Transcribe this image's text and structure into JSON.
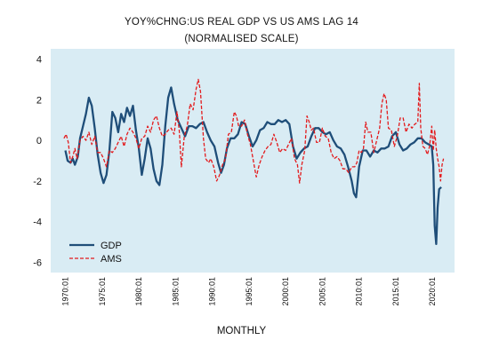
{
  "chart_data": {
    "type": "line",
    "title": "YOY%CHNG:US REAL GDP VS US AMS LAG 14",
    "subtitle": "(NORMALISED SCALE)",
    "xlabel": "MONTHLY",
    "ylabel": "",
    "ylim": [
      -6.5,
      4.5
    ],
    "y_ticks": [
      -6,
      -4,
      -2,
      0,
      2,
      4
    ],
    "x_range": [
      1968.0,
      2023.0
    ],
    "x_ticks": [
      "1970:01",
      "1975:01",
      "1980:01",
      "1985:01",
      "1990:01",
      "1995:01",
      "2000:01",
      "2005:01",
      "2010:01",
      "2015:01",
      "2020:01"
    ],
    "grid": false,
    "legend": "bottom-left",
    "plot_background": "#d9ecf4",
    "series": [
      {
        "name": "GDP",
        "color": "#1f4e79",
        "style": "solid",
        "points": [
          [
            1970.0,
            -0.5
          ],
          [
            1970.3,
            -1.0
          ],
          [
            1970.7,
            -1.1
          ],
          [
            1971.0,
            -0.9
          ],
          [
            1971.3,
            -1.2
          ],
          [
            1971.7,
            -0.8
          ],
          [
            1972.0,
            0.1
          ],
          [
            1972.4,
            0.7
          ],
          [
            1972.8,
            1.3
          ],
          [
            1973.2,
            2.1
          ],
          [
            1973.6,
            1.7
          ],
          [
            1974.0,
            0.6
          ],
          [
            1974.4,
            -0.7
          ],
          [
            1974.8,
            -1.6
          ],
          [
            1975.2,
            -2.1
          ],
          [
            1975.6,
            -1.7
          ],
          [
            1976.0,
            -0.5
          ],
          [
            1976.4,
            1.4
          ],
          [
            1976.8,
            1.1
          ],
          [
            1977.2,
            0.4
          ],
          [
            1977.6,
            1.3
          ],
          [
            1978.0,
            0.9
          ],
          [
            1978.4,
            1.6
          ],
          [
            1978.8,
            1.2
          ],
          [
            1979.2,
            1.7
          ],
          [
            1979.6,
            0.5
          ],
          [
            1980.0,
            -0.4
          ],
          [
            1980.4,
            -1.7
          ],
          [
            1980.8,
            -0.9
          ],
          [
            1981.2,
            0.1
          ],
          [
            1981.6,
            -0.4
          ],
          [
            1982.0,
            -1.4
          ],
          [
            1982.4,
            -2.0
          ],
          [
            1982.8,
            -2.2
          ],
          [
            1983.2,
            -1.2
          ],
          [
            1983.6,
            0.7
          ],
          [
            1984.0,
            2.1
          ],
          [
            1984.4,
            2.6
          ],
          [
            1984.8,
            1.8
          ],
          [
            1985.3,
            1.0
          ],
          [
            1985.8,
            0.6
          ],
          [
            1986.3,
            0.2
          ],
          [
            1986.8,
            0.7
          ],
          [
            1987.3,
            0.7
          ],
          [
            1987.8,
            0.6
          ],
          [
            1988.3,
            0.8
          ],
          [
            1988.8,
            0.9
          ],
          [
            1989.3,
            0.4
          ],
          [
            1989.8,
            0.0
          ],
          [
            1990.3,
            -0.3
          ],
          [
            1990.8,
            -1.1
          ],
          [
            1991.2,
            -1.6
          ],
          [
            1991.6,
            -1.2
          ],
          [
            1992.0,
            -0.4
          ],
          [
            1992.5,
            0.1
          ],
          [
            1993.0,
            0.1
          ],
          [
            1993.5,
            0.3
          ],
          [
            1994.0,
            0.9
          ],
          [
            1994.5,
            0.8
          ],
          [
            1995.0,
            0.2
          ],
          [
            1995.5,
            -0.3
          ],
          [
            1996.0,
            0.0
          ],
          [
            1996.5,
            0.5
          ],
          [
            1997.0,
            0.6
          ],
          [
            1997.5,
            0.9
          ],
          [
            1998.0,
            0.8
          ],
          [
            1998.5,
            0.8
          ],
          [
            1999.0,
            1.0
          ],
          [
            1999.5,
            0.9
          ],
          [
            2000.0,
            1.0
          ],
          [
            2000.5,
            0.8
          ],
          [
            2001.0,
            -0.3
          ],
          [
            2001.5,
            -0.9
          ],
          [
            2002.0,
            -0.6
          ],
          [
            2002.5,
            -0.4
          ],
          [
            2003.0,
            -0.3
          ],
          [
            2003.5,
            0.2
          ],
          [
            2004.0,
            0.6
          ],
          [
            2004.5,
            0.6
          ],
          [
            2005.0,
            0.4
          ],
          [
            2005.5,
            0.3
          ],
          [
            2006.0,
            0.4
          ],
          [
            2006.5,
            0.0
          ],
          [
            2007.0,
            -0.3
          ],
          [
            2007.5,
            -0.4
          ],
          [
            2008.0,
            -0.7
          ],
          [
            2008.5,
            -1.3
          ],
          [
            2009.0,
            -2.0
          ],
          [
            2009.3,
            -2.6
          ],
          [
            2009.6,
            -2.8
          ],
          [
            2010.0,
            -1.3
          ],
          [
            2010.5,
            -0.5
          ],
          [
            2011.0,
            -0.5
          ],
          [
            2011.5,
            -0.8
          ],
          [
            2012.0,
            -0.5
          ],
          [
            2012.5,
            -0.6
          ],
          [
            2013.0,
            -0.4
          ],
          [
            2013.5,
            -0.4
          ],
          [
            2014.0,
            -0.3
          ],
          [
            2014.5,
            0.2
          ],
          [
            2015.0,
            0.4
          ],
          [
            2015.5,
            -0.2
          ],
          [
            2016.0,
            -0.5
          ],
          [
            2016.5,
            -0.4
          ],
          [
            2017.0,
            -0.2
          ],
          [
            2017.5,
            -0.1
          ],
          [
            2018.0,
            0.1
          ],
          [
            2018.5,
            0.1
          ],
          [
            2019.0,
            -0.1
          ],
          [
            2019.5,
            -0.2
          ],
          [
            2019.9,
            -0.3
          ],
          [
            2020.1,
            -1.2
          ],
          [
            2020.3,
            -4.2
          ],
          [
            2020.5,
            -5.1
          ],
          [
            2020.7,
            -3.3
          ],
          [
            2020.9,
            -2.4
          ],
          [
            2021.2,
            -2.3
          ]
        ]
      },
      {
        "name": "AMS",
        "color": "#e31a1c",
        "style": "dashed",
        "points": [
          [
            1969.8,
            0.1
          ],
          [
            1970.1,
            0.3
          ],
          [
            1970.4,
            -0.1
          ],
          [
            1970.7,
            -1.1
          ],
          [
            1971.0,
            -0.8
          ],
          [
            1971.3,
            -0.4
          ],
          [
            1971.6,
            -0.9
          ],
          [
            1972.0,
            0.0
          ],
          [
            1972.4,
            0.2
          ],
          [
            1972.8,
            0.0
          ],
          [
            1973.2,
            0.4
          ],
          [
            1973.6,
            -0.2
          ],
          [
            1974.0,
            0.2
          ],
          [
            1974.4,
            -0.6
          ],
          [
            1974.8,
            -0.6
          ],
          [
            1975.2,
            -0.9
          ],
          [
            1975.6,
            -1.3
          ],
          [
            1976.0,
            -0.5
          ],
          [
            1976.4,
            -0.6
          ],
          [
            1976.8,
            -0.4
          ],
          [
            1977.2,
            -0.1
          ],
          [
            1977.6,
            0.2
          ],
          [
            1978.0,
            -0.3
          ],
          [
            1978.4,
            0.3
          ],
          [
            1978.8,
            0.6
          ],
          [
            1979.2,
            0.4
          ],
          [
            1979.6,
            0.1
          ],
          [
            1980.0,
            -0.4
          ],
          [
            1980.4,
            0.1
          ],
          [
            1980.8,
            0.2
          ],
          [
            1981.2,
            0.7
          ],
          [
            1981.6,
            0.4
          ],
          [
            1982.0,
            1.0
          ],
          [
            1982.4,
            1.2
          ],
          [
            1982.8,
            0.6
          ],
          [
            1983.2,
            0.2
          ],
          [
            1983.6,
            0.3
          ],
          [
            1984.0,
            0.5
          ],
          [
            1984.4,
            0.6
          ],
          [
            1984.8,
            0.3
          ],
          [
            1985.2,
            1.4
          ],
          [
            1985.5,
            0.5
          ],
          [
            1985.8,
            -1.3
          ],
          [
            1986.2,
            0.2
          ],
          [
            1986.6,
            0.7
          ],
          [
            1987.0,
            1.8
          ],
          [
            1987.4,
            1.5
          ],
          [
            1987.8,
            2.5
          ],
          [
            1988.1,
            3.0
          ],
          [
            1988.4,
            2.4
          ],
          [
            1988.8,
            0.1
          ],
          [
            1989.1,
            -0.9
          ],
          [
            1989.5,
            -1.1
          ],
          [
            1989.8,
            -0.9
          ],
          [
            1990.2,
            -1.3
          ],
          [
            1990.6,
            -2.0
          ],
          [
            1991.0,
            -1.7
          ],
          [
            1991.4,
            -1.2
          ],
          [
            1991.8,
            -0.9
          ],
          [
            1992.2,
            0.3
          ],
          [
            1992.6,
            0.4
          ],
          [
            1993.0,
            1.4
          ],
          [
            1993.3,
            1.2
          ],
          [
            1993.6,
            0.7
          ],
          [
            1994.0,
            0.7
          ],
          [
            1994.4,
            1.0
          ],
          [
            1994.8,
            0.3
          ],
          [
            1995.2,
            -0.2
          ],
          [
            1995.6,
            -1.0
          ],
          [
            1996.0,
            -1.8
          ],
          [
            1996.4,
            -1.2
          ],
          [
            1996.8,
            -0.8
          ],
          [
            1997.2,
            -0.5
          ],
          [
            1997.6,
            -0.3
          ],
          [
            1998.0,
            -0.2
          ],
          [
            1998.4,
            0.3
          ],
          [
            1998.8,
            -0.1
          ],
          [
            1999.2,
            -0.6
          ],
          [
            1999.6,
            -0.4
          ],
          [
            2000.0,
            -0.5
          ],
          [
            2000.4,
            -0.2
          ],
          [
            2000.8,
            0.1
          ],
          [
            2001.2,
            -0.9
          ],
          [
            2001.6,
            -1.2
          ],
          [
            2001.9,
            -2.1
          ],
          [
            2002.2,
            -1.2
          ],
          [
            2002.6,
            -0.5
          ],
          [
            2002.9,
            1.2
          ],
          [
            2003.2,
            0.9
          ],
          [
            2003.5,
            0.5
          ],
          [
            2003.8,
            0.6
          ],
          [
            2004.2,
            -0.1
          ],
          [
            2004.6,
            -0.1
          ],
          [
            2005.0,
            0.6
          ],
          [
            2005.4,
            0.2
          ],
          [
            2005.8,
            0.1
          ],
          [
            2006.2,
            -0.6
          ],
          [
            2006.6,
            -0.9
          ],
          [
            2007.0,
            -0.8
          ],
          [
            2007.4,
            -1.0
          ],
          [
            2007.8,
            -1.4
          ],
          [
            2008.2,
            -1.4
          ],
          [
            2008.6,
            -1.6
          ],
          [
            2009.0,
            -1.3
          ],
          [
            2009.4,
            -1.3
          ],
          [
            2009.7,
            -1.1
          ],
          [
            2010.0,
            -0.5
          ],
          [
            2010.3,
            -0.6
          ],
          [
            2010.6,
            -0.4
          ],
          [
            2010.9,
            0.9
          ],
          [
            2011.2,
            0.4
          ],
          [
            2011.6,
            0.4
          ],
          [
            2012.0,
            -0.6
          ],
          [
            2012.4,
            0.0
          ],
          [
            2012.8,
            0.6
          ],
          [
            2013.1,
            1.8
          ],
          [
            2013.4,
            2.3
          ],
          [
            2013.7,
            2.0
          ],
          [
            2014.0,
            0.6
          ],
          [
            2014.4,
            0.5
          ],
          [
            2014.8,
            -0.3
          ],
          [
            2015.2,
            0.2
          ],
          [
            2015.6,
            1.1
          ],
          [
            2016.0,
            1.1
          ],
          [
            2016.4,
            0.4
          ],
          [
            2016.8,
            0.8
          ],
          [
            2017.2,
            0.6
          ],
          [
            2017.6,
            0.8
          ],
          [
            2018.0,
            0.9
          ],
          [
            2018.2,
            2.8
          ],
          [
            2018.4,
            0.6
          ],
          [
            2018.7,
            -0.3
          ],
          [
            2019.0,
            -0.4
          ],
          [
            2019.3,
            -0.7
          ],
          [
            2019.6,
            -0.3
          ],
          [
            2019.9,
            0.7
          ],
          [
            2020.1,
            -0.5
          ],
          [
            2020.3,
            0.5
          ],
          [
            2020.5,
            -0.4
          ],
          [
            2020.7,
            -0.9
          ],
          [
            2020.9,
            -1.3
          ],
          [
            2021.1,
            -2.0
          ],
          [
            2021.3,
            -1.2
          ],
          [
            2021.5,
            -0.9
          ]
        ]
      }
    ]
  }
}
